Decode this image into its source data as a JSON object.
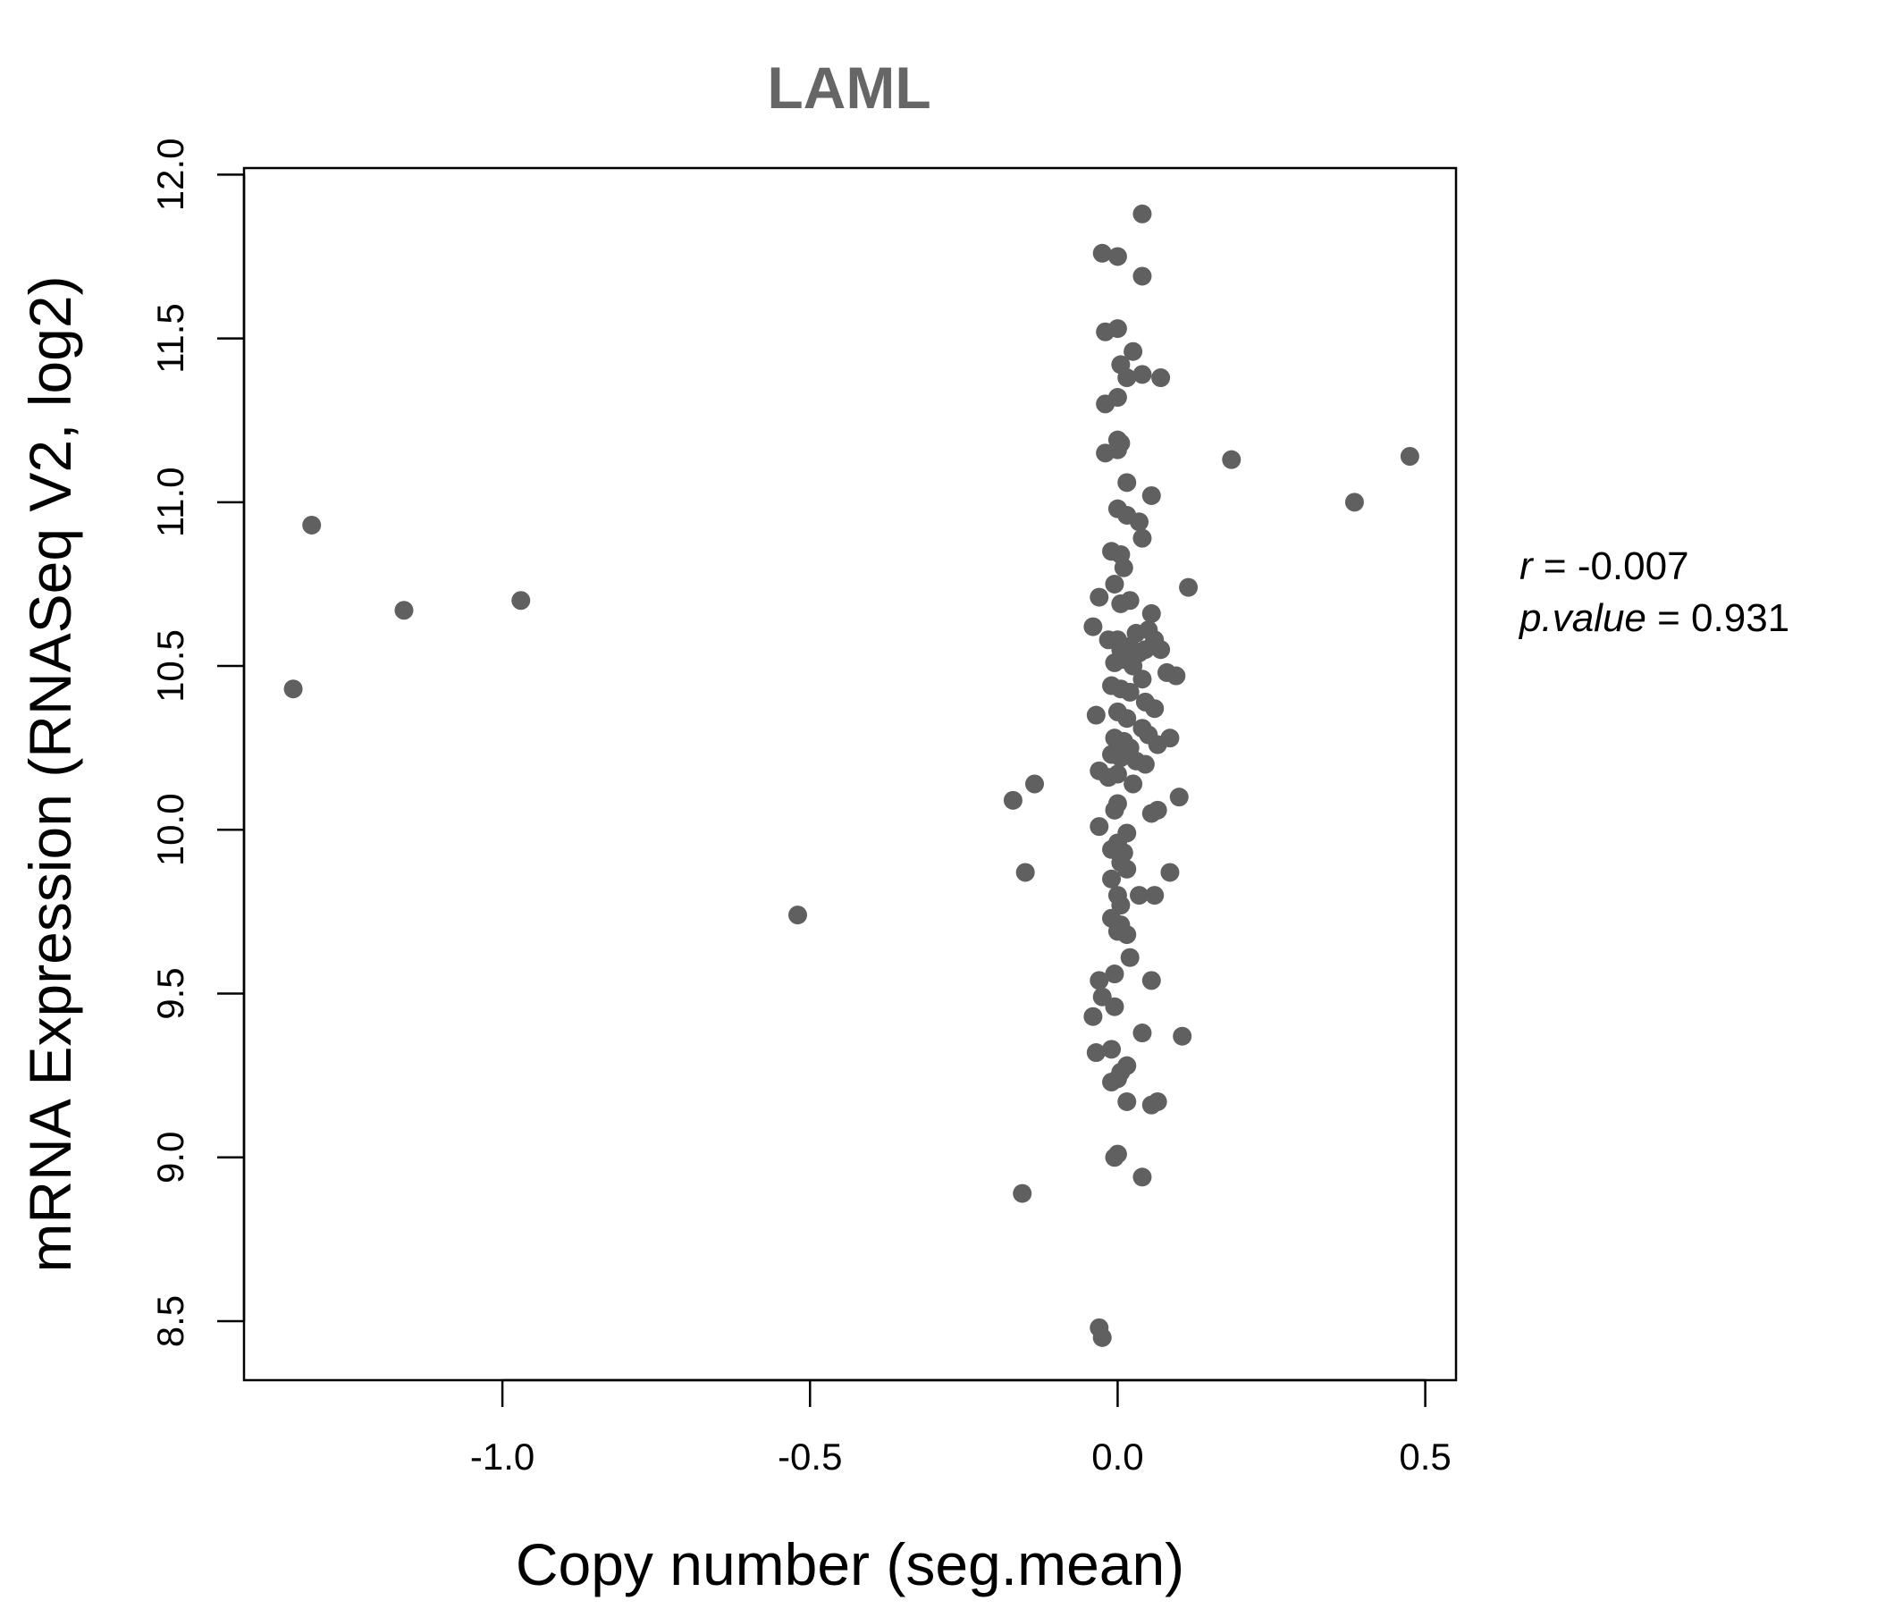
{
  "chart_data": {
    "type": "scatter",
    "title": "LAML",
    "xlabel": "Copy number (seg.mean)",
    "ylabel": "mRNA Expression (RNASeq V2, log2)",
    "xlim": [
      -1.42,
      0.55
    ],
    "ylim": [
      8.32,
      12.02
    ],
    "xticks": [
      -1.0,
      -0.5,
      0.0,
      0.5
    ],
    "xtick_labels": [
      "-1.0",
      "-0.5",
      "0.0",
      "0.5"
    ],
    "yticks": [
      8.5,
      9.0,
      9.5,
      10.0,
      10.5,
      11.0,
      11.5,
      12.0
    ],
    "ytick_labels": [
      "8.5",
      "9.0",
      "9.5",
      "10.0",
      "10.5",
      "11.0",
      "11.5",
      "12.0"
    ],
    "grid": false,
    "marker_color": "#606060",
    "annotation": {
      "r_label": "r",
      "r_value": "-0.007",
      "p_label": "p.value",
      "p_value": "0.931"
    },
    "points": [
      [
        -1.34,
        10.43
      ],
      [
        -1.31,
        10.93
      ],
      [
        -1.16,
        10.67
      ],
      [
        -0.97,
        10.7
      ],
      [
        -0.52,
        9.74
      ],
      [
        -0.17,
        10.09
      ],
      [
        -0.15,
        9.87
      ],
      [
        -0.135,
        10.14
      ],
      [
        -0.155,
        8.89
      ],
      [
        0.04,
        11.88
      ],
      [
        -0.025,
        11.76
      ],
      [
        0.0,
        11.75
      ],
      [
        0.04,
        11.69
      ],
      [
        -0.02,
        11.52
      ],
      [
        0.0,
        11.53
      ],
      [
        0.025,
        11.46
      ],
      [
        0.005,
        11.42
      ],
      [
        0.04,
        11.39
      ],
      [
        0.015,
        11.38
      ],
      [
        0.07,
        11.38
      ],
      [
        -0.02,
        11.3
      ],
      [
        0.0,
        11.32
      ],
      [
        0.0,
        11.19
      ],
      [
        0.005,
        11.18
      ],
      [
        -0.02,
        11.15
      ],
      [
        0.0,
        11.16
      ],
      [
        0.185,
        11.13
      ],
      [
        0.475,
        11.14
      ],
      [
        0.385,
        11.0
      ],
      [
        0.015,
        11.06
      ],
      [
        0.055,
        11.02
      ],
      [
        0.0,
        10.98
      ],
      [
        0.035,
        10.94
      ],
      [
        0.015,
        10.96
      ],
      [
        0.04,
        10.89
      ],
      [
        -0.01,
        10.85
      ],
      [
        0.005,
        10.84
      ],
      [
        0.01,
        10.8
      ],
      [
        0.115,
        10.74
      ],
      [
        -0.005,
        10.75
      ],
      [
        -0.03,
        10.71
      ],
      [
        0.02,
        10.7
      ],
      [
        0.005,
        10.69
      ],
      [
        0.055,
        10.66
      ],
      [
        -0.04,
        10.62
      ],
      [
        -0.015,
        10.58
      ],
      [
        0.0,
        10.58
      ],
      [
        0.03,
        10.6
      ],
      [
        0.05,
        10.61
      ],
      [
        0.06,
        10.58
      ],
      [
        0.02,
        10.56
      ],
      [
        0.005,
        10.55
      ],
      [
        0.035,
        10.54
      ],
      [
        0.045,
        10.55
      ],
      [
        0.07,
        10.55
      ],
      [
        0.01,
        10.52
      ],
      [
        -0.005,
        10.51
      ],
      [
        0.025,
        10.5
      ],
      [
        0.08,
        10.48
      ],
      [
        0.095,
        10.47
      ],
      [
        0.04,
        10.46
      ],
      [
        -0.01,
        10.44
      ],
      [
        0.005,
        10.43
      ],
      [
        0.02,
        10.42
      ],
      [
        0.045,
        10.39
      ],
      [
        0.06,
        10.37
      ],
      [
        -0.035,
        10.35
      ],
      [
        0.0,
        10.36
      ],
      [
        0.015,
        10.34
      ],
      [
        0.04,
        10.31
      ],
      [
        0.05,
        10.29
      ],
      [
        0.085,
        10.28
      ],
      [
        -0.005,
        10.28
      ],
      [
        0.01,
        10.27
      ],
      [
        0.02,
        10.25
      ],
      [
        0.065,
        10.26
      ],
      [
        -0.01,
        10.23
      ],
      [
        0.005,
        10.22
      ],
      [
        0.03,
        10.21
      ],
      [
        0.045,
        10.2
      ],
      [
        -0.03,
        10.18
      ],
      [
        -0.015,
        10.16
      ],
      [
        0.0,
        10.17
      ],
      [
        0.025,
        10.14
      ],
      [
        0.1,
        10.1
      ],
      [
        0.0,
        10.08
      ],
      [
        -0.005,
        10.06
      ],
      [
        0.055,
        10.05
      ],
      [
        0.065,
        10.06
      ],
      [
        -0.03,
        10.01
      ],
      [
        0.015,
        9.99
      ],
      [
        0.0,
        9.96
      ],
      [
        0.01,
        9.93
      ],
      [
        -0.01,
        9.94
      ],
      [
        0.005,
        9.9
      ],
      [
        0.015,
        9.88
      ],
      [
        0.085,
        9.87
      ],
      [
        -0.01,
        9.85
      ],
      [
        0.0,
        9.8
      ],
      [
        0.035,
        9.8
      ],
      [
        0.06,
        9.8
      ],
      [
        0.005,
        9.77
      ],
      [
        -0.01,
        9.73
      ],
      [
        0.005,
        9.71
      ],
      [
        0.015,
        9.68
      ],
      [
        0.0,
        9.69
      ],
      [
        0.02,
        9.61
      ],
      [
        -0.005,
        9.56
      ],
      [
        0.055,
        9.54
      ],
      [
        -0.03,
        9.54
      ],
      [
        -0.025,
        9.49
      ],
      [
        -0.005,
        9.46
      ],
      [
        -0.04,
        9.43
      ],
      [
        0.04,
        9.38
      ],
      [
        0.105,
        9.37
      ],
      [
        -0.01,
        9.33
      ],
      [
        -0.035,
        9.32
      ],
      [
        0.015,
        9.28
      ],
      [
        0.005,
        9.26
      ],
      [
        -0.01,
        9.23
      ],
      [
        0.0,
        9.24
      ],
      [
        0.015,
        9.17
      ],
      [
        0.055,
        9.16
      ],
      [
        0.065,
        9.17
      ],
      [
        0.0,
        9.01
      ],
      [
        -0.005,
        9.0
      ],
      [
        0.04,
        8.94
      ],
      [
        -0.03,
        8.48
      ],
      [
        -0.025,
        8.45
      ]
    ]
  }
}
